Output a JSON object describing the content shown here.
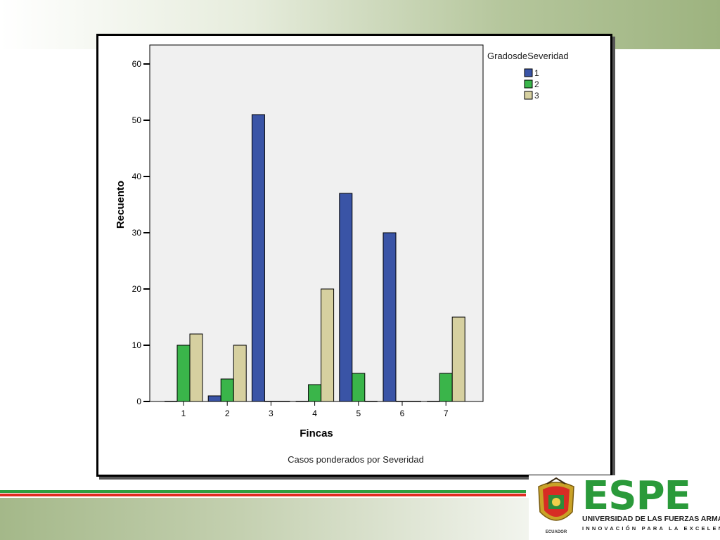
{
  "chart_data": {
    "type": "bar",
    "title": "",
    "xlabel": "Fincas",
    "ylabel": "Recuento",
    "footnote": "Casos ponderados por Severidad",
    "categories": [
      "1",
      "2",
      "3",
      "4",
      "5",
      "6",
      "7"
    ],
    "y_ticks": [
      "0",
      "10",
      "20",
      "30",
      "40",
      "50",
      "60"
    ],
    "ylim": [
      0,
      62
    ],
    "grid": false,
    "legend_title": "GradosdeSeveridad",
    "legend_position": "top-right",
    "series": [
      {
        "name": "1",
        "color": "#3a54a6",
        "values": [
          0,
          1,
          51,
          0,
          37,
          30,
          0
        ]
      },
      {
        "name": "2",
        "color": "#3ab54a",
        "values": [
          10,
          4,
          0,
          3,
          5,
          0,
          5
        ]
      },
      {
        "name": "3",
        "color": "#d6d0a0",
        "values": [
          12,
          10,
          0,
          20,
          0,
          0,
          15
        ]
      }
    ]
  },
  "logo": {
    "brand": "ESPE",
    "university": "UNIVERSIDAD DE LAS FUERZAS ARMADAS",
    "motto": "INNOVACIÓN PARA LA EXCELENCIA",
    "crest_text": "ECUADOR"
  }
}
